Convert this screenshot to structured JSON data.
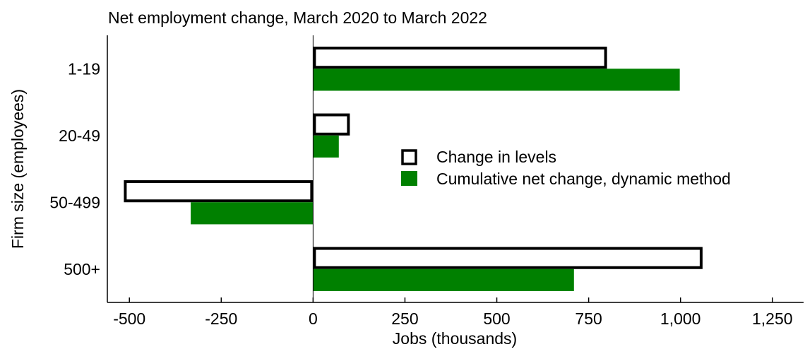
{
  "chart_data": {
    "type": "bar",
    "orientation": "horizontal",
    "title": "Net employment change, March 2020 to March 2022",
    "xlabel": "Jobs (thousands)",
    "ylabel": "Firm size (employees)",
    "categories": [
      "1-19",
      "20-49",
      "50-499",
      "500+"
    ],
    "series": [
      {
        "name": "Change in levels",
        "style": "outline",
        "color": "#000000",
        "values": [
          800,
          100,
          -515,
          1060
        ]
      },
      {
        "name": "Cumulative net change, dynamic method",
        "style": "filled",
        "color": "#008000",
        "values": [
          998,
          70,
          -333,
          710
        ]
      }
    ],
    "xlim": [
      -560,
      1335
    ],
    "xticks": [
      -500,
      -250,
      0,
      250,
      500,
      750,
      1000,
      1250
    ],
    "xtick_labels": [
      "-500",
      "-250",
      "0",
      "250",
      "500",
      "750",
      "1,000",
      "1,250"
    ],
    "grid": false,
    "legend_position": "center-right"
  }
}
